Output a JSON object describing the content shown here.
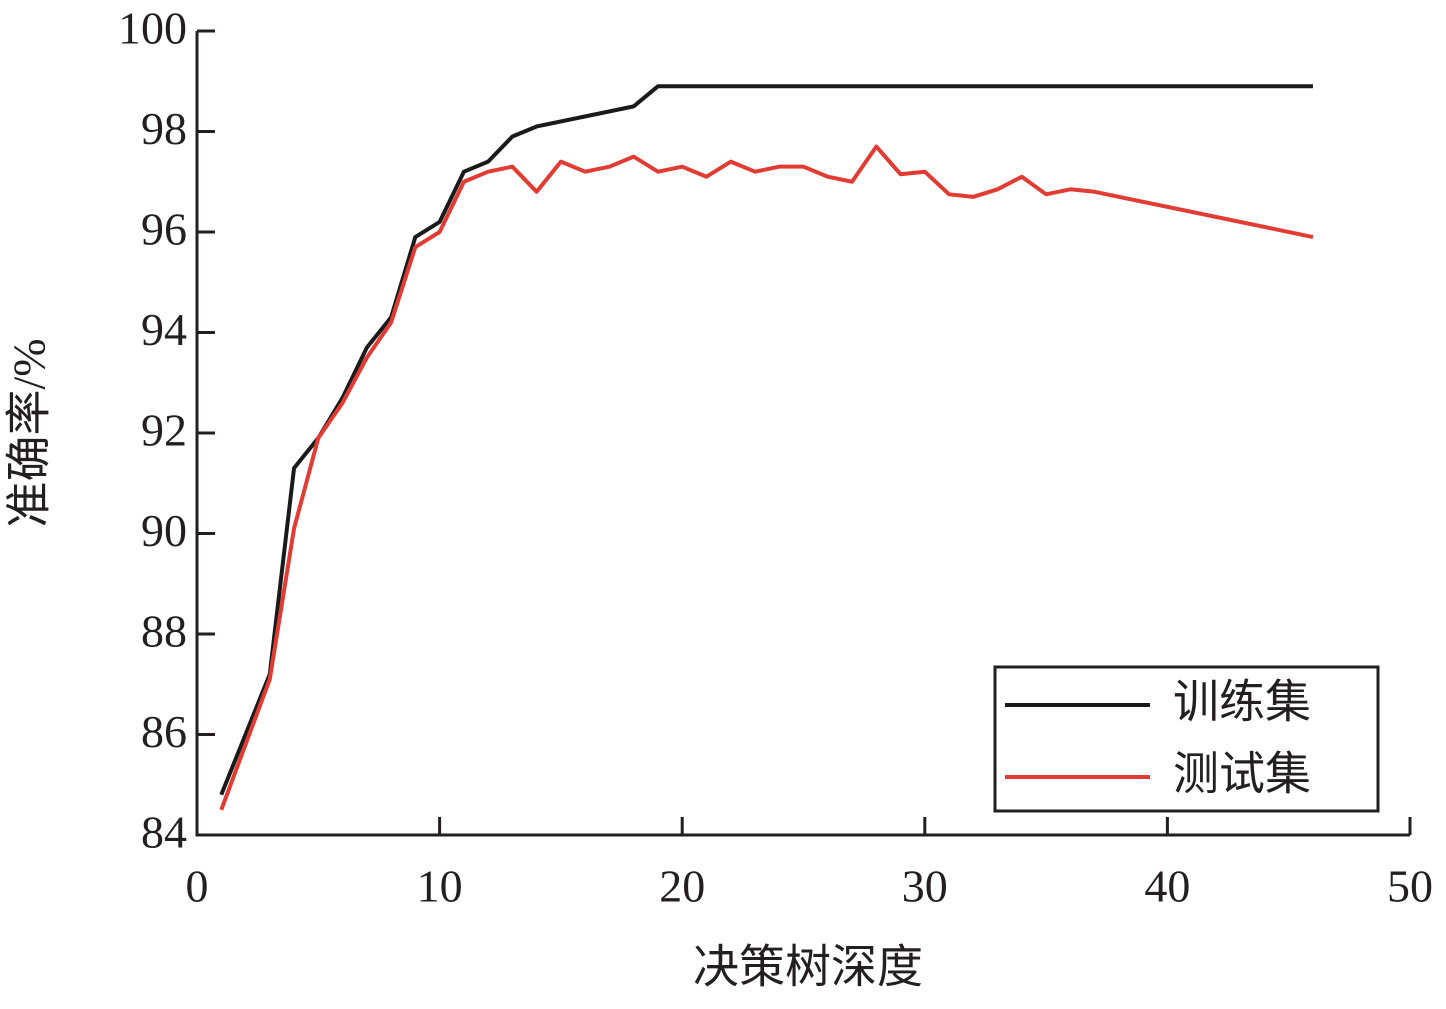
{
  "chart_data": {
    "type": "line",
    "xlabel": "决策树深度",
    "ylabel": "准确率/%",
    "xlim": [
      0,
      50
    ],
    "xticks": [
      0,
      10,
      20,
      30,
      40,
      50
    ],
    "ylim": [
      84,
      100
    ],
    "yticks": [
      84,
      86,
      88,
      90,
      92,
      94,
      96,
      98,
      100
    ],
    "legend": "lower right",
    "series": [
      {
        "name": "训练集",
        "color": "#1a1a1a",
        "x": [
          1,
          3,
          4,
          5,
          6,
          7,
          8,
          9,
          10,
          11,
          12,
          13,
          14,
          18,
          19,
          46
        ],
        "values": [
          84.8,
          87.2,
          91.3,
          91.9,
          92.7,
          93.7,
          94.3,
          95.9,
          96.2,
          97.2,
          97.4,
          97.9,
          98.1,
          98.5,
          98.9,
          98.9
        ]
      },
      {
        "name": "测试集",
        "color": "#e23b33",
        "x": [
          1,
          2,
          3,
          4,
          5,
          6,
          7,
          8,
          9,
          10,
          11,
          12,
          13,
          14,
          15,
          16,
          17,
          18,
          19,
          20,
          21,
          22,
          23,
          24,
          25,
          26,
          27,
          28,
          29,
          30,
          31,
          32,
          33,
          34,
          35,
          36,
          37,
          46
        ],
        "values": [
          84.5,
          85.8,
          87.1,
          90.1,
          91.9,
          92.6,
          93.5,
          94.2,
          95.7,
          96.0,
          97.0,
          97.2,
          97.3,
          96.8,
          97.4,
          97.2,
          97.3,
          97.5,
          97.2,
          97.3,
          97.1,
          97.4,
          97.2,
          97.3,
          97.3,
          97.1,
          97.0,
          97.7,
          97.15,
          97.2,
          96.75,
          96.7,
          96.85,
          97.1,
          96.75,
          96.85,
          96.8,
          95.9
        ]
      }
    ]
  }
}
